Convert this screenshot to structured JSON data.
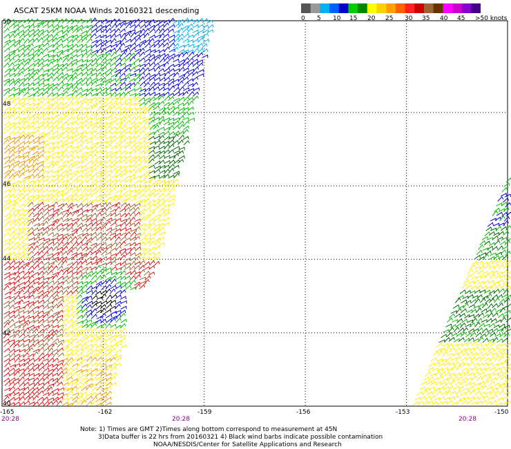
{
  "title": "ASCAT 25KM NOAA Winds 20160321 descending",
  "legend": {
    "colors": [
      "#555555",
      "#999999",
      "#00b0f0",
      "#0060ff",
      "#0000cc",
      "#00cc00",
      "#008800",
      "#ffff00",
      "#ffd000",
      "#ffa000",
      "#ff6000",
      "#ff2020",
      "#cc0000",
      "#996633",
      "#663300",
      "#ff00ff",
      "#cc00cc",
      "#8800cc",
      "#440088"
    ],
    "ticks": [
      "0",
      "5",
      "10",
      "15",
      "20",
      "25",
      "30",
      "35",
      "40",
      "45",
      ">50 knots"
    ]
  },
  "lat_labels": [
    "50",
    "48",
    "46",
    "44",
    "42",
    "40"
  ],
  "lon_labels": [
    "-165",
    "-162",
    "-159",
    "-156",
    "-153",
    "-150"
  ],
  "time_labels": [
    "20:28",
    "20:28",
    "20:28"
  ],
  "notes": [
    "Note: 1) Times are GMT 2)Times along bottom correspond to measurement at 45N",
    "3)Data buffer is 22 hrs from 20160321 4) Black wind barbs indicate possible contamination",
    "NOAA/NESDIS/Center for Satellite Applications and Research"
  ],
  "map": {
    "lon_range": [
      -165,
      -150
    ],
    "lat_range": [
      40,
      50.5
    ],
    "grid_lons": [
      -162,
      -159,
      -156,
      -153
    ],
    "grid_lats": [
      42,
      44,
      46,
      48
    ],
    "wind_colors": {
      "light_blue": "#00b0f0",
      "blue": "#0000dd",
      "green": "#00bb00",
      "dark_green": "#006600",
      "yellow": "#ffee00",
      "orange": "#ee9900",
      "red": "#dd1111",
      "brown": "#996633",
      "black": "#000000"
    }
  }
}
